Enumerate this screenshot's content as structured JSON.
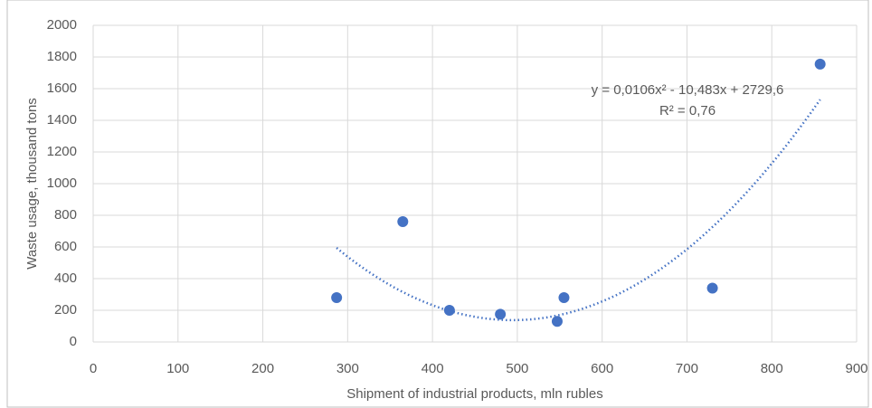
{
  "chart_data": {
    "type": "scatter",
    "x_label": "Shipment of industrial products, mln rubles",
    "y_label": "Waste usage, thousand tons",
    "series": [
      {
        "color": "#4472c4",
        "x": [
          287,
          365,
          420,
          480,
          547,
          555,
          730,
          857
        ],
        "values": [
          280,
          760,
          200,
          175,
          130,
          280,
          340,
          1755
        ]
      }
    ],
    "xlim": [
      0,
      900
    ],
    "xticks": [
      0,
      100,
      200,
      300,
      400,
      500,
      600,
      700,
      800,
      900
    ],
    "ylim": [
      0,
      2000
    ],
    "yticks": [
      0,
      200,
      400,
      600,
      800,
      1000,
      1200,
      1400,
      1600,
      1800,
      2000
    ],
    "grid": true,
    "trendline": {
      "coefficients": [
        0.0106,
        -10.483,
        2729.6
      ],
      "color": "#4472c4",
      "equation": "y = 0,0106x² - 10,483x + 2729,6",
      "r2": "R² = 0,76"
    }
  }
}
